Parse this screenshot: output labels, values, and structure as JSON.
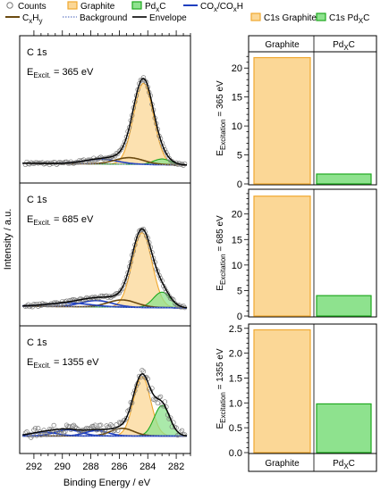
{
  "colors": {
    "counts": "#7a7a7a",
    "graphite": "#f0a830",
    "graphite_fill": "#fbd796",
    "pdxc": "#1fa81f",
    "pdxc_fill": "#8ee28e",
    "co": "#1f3fbf",
    "cxhy": "#6b4a10",
    "background": "#6a7fc8",
    "envelope": "#000000"
  },
  "chart_data": [
    {
      "type": "line",
      "xlabel": "Binding Energy / eV",
      "ylabel": "Intensity / a.u.",
      "xlim": [
        293,
        281
      ],
      "x_ticks": [
        "292",
        "290",
        "288",
        "286",
        "284",
        "282"
      ],
      "legend": [
        {
          "label": "Counts",
          "style": "circle"
        },
        {
          "label": "Graphite",
          "style": "fill-graphite"
        },
        {
          "label": "Pd",
          "sub": "x",
          "label2": "C",
          "style": "fill-pdxc"
        },
        {
          "label": "CO",
          "sub": "x",
          "label2": "/CO",
          "sub2": "x",
          "label3": "H",
          "style": "line-co"
        },
        {
          "label": "C",
          "sub": "x",
          "label2": "H",
          "sub2": "y",
          "style": "line-cxhy"
        },
        {
          "label": "Background",
          "style": "dotted-bg"
        },
        {
          "label": "Envelope",
          "style": "line-env"
        }
      ],
      "panels": [
        {
          "label": "C 1s",
          "excitation_prefix": "E",
          "excitation_sub": "Excit.",
          "excitation_value": "= 365 eV",
          "components": [
            {
              "name": "Graphite",
              "center": 284.3,
              "height": 0.85,
              "width": 0.7
            },
            {
              "name": "PdxC",
              "center": 283.0,
              "height": 0.06,
              "width": 0.6
            },
            {
              "name": "COx/COxH",
              "center": 287.3,
              "height": 0.05,
              "width": 1.2
            },
            {
              "name": "CxHy",
              "center": 285.3,
              "height": 0.07,
              "width": 1.0
            }
          ],
          "background_level": [
            0.04,
            0.02
          ],
          "noise": 0.015
        },
        {
          "label": "C 1s",
          "excitation_prefix": "E",
          "excitation_sub": "Excit.",
          "excitation_value": "= 685 eV",
          "components": [
            {
              "name": "Graphite",
              "center": 284.4,
              "height": 0.82,
              "width": 0.7
            },
            {
              "name": "PdxC",
              "center": 283.0,
              "height": 0.17,
              "width": 0.6
            },
            {
              "name": "COx/COxH",
              "center": 287.6,
              "height": 0.07,
              "width": 1.1
            },
            {
              "name": "CxHy",
              "center": 285.8,
              "height": 0.08,
              "width": 1.0
            },
            {
              "name": "COx/COxH",
              "center": 289.5,
              "height": 0.04,
              "width": 1.5
            }
          ],
          "background_level": [
            0.04,
            0.02
          ],
          "noise": 0.015
        },
        {
          "label": "C 1s",
          "excitation_prefix": "E",
          "excitation_sub": "Excit.",
          "excitation_value": "= 1355 eV",
          "components": [
            {
              "name": "Graphite",
              "center": 284.4,
              "height": 0.78,
              "width": 0.6
            },
            {
              "name": "PdxC",
              "center": 283.0,
              "height": 0.4,
              "width": 0.55
            },
            {
              "name": "COx/COxH",
              "center": 287.6,
              "height": 0.07,
              "width": 0.8
            },
            {
              "name": "CxHy",
              "center": 285.8,
              "height": 0.1,
              "width": 0.8
            },
            {
              "name": "COx/COxH",
              "center": 289.6,
              "height": 0.08,
              "width": 0.9
            },
            {
              "name": "COx/COxH",
              "center": 291.3,
              "height": 0.05,
              "width": 0.9
            }
          ],
          "background_level": [
            0.02,
            0.02
          ],
          "noise": 0.06
        }
      ]
    },
    {
      "type": "bar",
      "categories": [
        "Graphite",
        "Pd"
      ],
      "category_subs": [
        "",
        "X"
      ],
      "category_suffix": [
        "",
        "C"
      ],
      "legend": [
        {
          "label": "C1s Graphite",
          "style": "fill-graphite"
        },
        {
          "label": "C1s Pd",
          "sub": "X",
          "label2": "C",
          "style": "fill-pdxc"
        }
      ],
      "panels": [
        {
          "ylabel_prefix": "E",
          "ylabel_sub": "Excitation",
          "ylabel_value": "= 365 eV",
          "values": [
            21.8,
            1.7
          ],
          "ylim": [
            0,
            22.5
          ],
          "y_ticks": [
            0,
            5,
            10,
            15,
            20
          ],
          "y_tick_labels": [
            "0",
            "5",
            "10",
            "15",
            "20"
          ]
        },
        {
          "ylabel_prefix": "E",
          "ylabel_sub": "Excitation",
          "ylabel_value": "= 685 eV",
          "values": [
            23.5,
            4.0
          ],
          "ylim": [
            0,
            24.5
          ],
          "y_ticks": [
            0,
            5,
            10,
            15,
            20
          ],
          "y_tick_labels": [
            "0",
            "5",
            "10",
            "15",
            "20"
          ]
        },
        {
          "ylabel_prefix": "E",
          "ylabel_sub": "Excitation",
          "ylabel_value": "= 1355 eV",
          "values": [
            2.47,
            0.98
          ],
          "ylim": [
            0,
            2.55
          ],
          "y_ticks": [
            0,
            0.5,
            1.0,
            1.5,
            2.0,
            2.5
          ],
          "y_tick_labels": [
            "0.0",
            "0.5",
            "1.0",
            "1.5",
            "2.0",
            "2.5"
          ]
        }
      ]
    }
  ]
}
